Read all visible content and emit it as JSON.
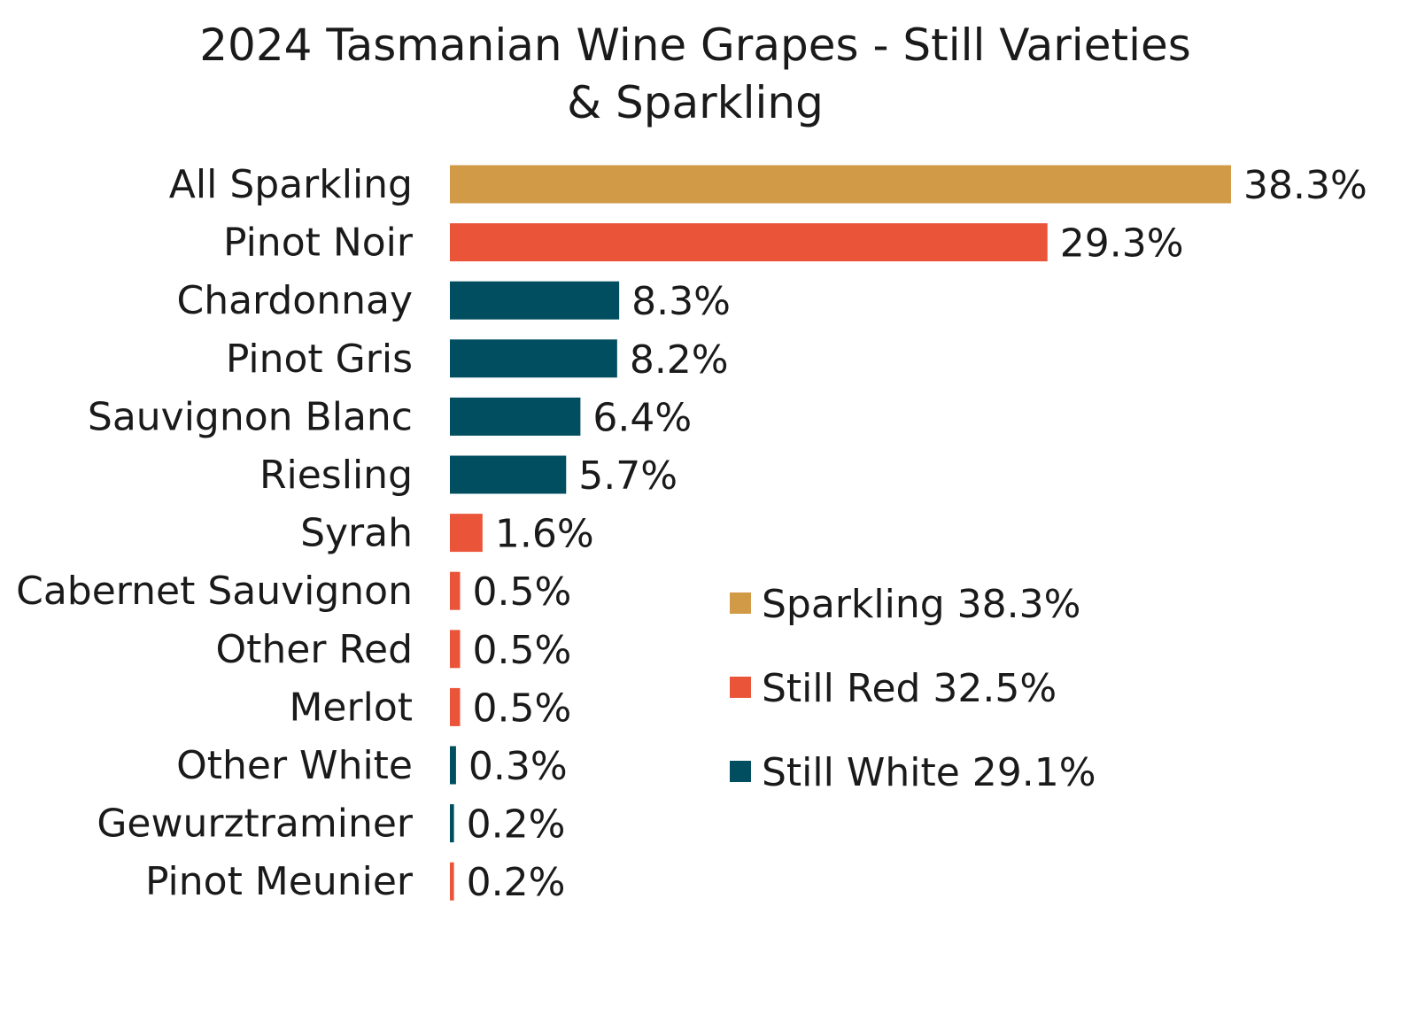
{
  "chart_data": {
    "type": "bar",
    "orientation": "horizontal",
    "title": "2024 Tasmanian Wine Grapes - Still Varieties & Sparkling",
    "title_lines": [
      "2024 Tasmanian Wine Grapes - Still Varieties",
      "& Sparkling"
    ],
    "categories": [
      "All Sparkling",
      "Pinot Noir",
      "Chardonnay",
      "Pinot Gris",
      "Sauvignon Blanc",
      "Riesling",
      "Syrah",
      "Cabernet Sauvignon",
      "Other Red",
      "Merlot",
      "Other White",
      "Gewurztraminer",
      "Pinot Meunier"
    ],
    "values": [
      38.3,
      29.3,
      8.3,
      8.2,
      6.4,
      5.7,
      1.6,
      0.5,
      0.5,
      0.5,
      0.3,
      0.2,
      0.2
    ],
    "value_labels": [
      "38.3%",
      "29.3%",
      "8.3%",
      "8.2%",
      "6.4%",
      "5.7%",
      "1.6%",
      "0.5%",
      "0.5%",
      "0.5%",
      "0.3%",
      "0.2%",
      "0.2%"
    ],
    "groups": [
      "Sparkling",
      "Still Red",
      "Still White",
      "Still White",
      "Still White",
      "Still White",
      "Still Red",
      "Still Red",
      "Still Red",
      "Still Red",
      "Still White",
      "Still White",
      "Still Red"
    ],
    "xlim": [
      0,
      38.3
    ],
    "grid": false,
    "legend_position": "center-right",
    "legend": [
      {
        "name": "Sparkling",
        "label": "Sparkling 38.3%",
        "value": 38.3,
        "color": "#D09A47"
      },
      {
        "name": "Still Red",
        "label": "Still Red 32.5%",
        "value": 32.5,
        "color": "#EA553A"
      },
      {
        "name": "Still White",
        "label": "Still White 29.1%",
        "value": 29.1,
        "color": "#004E5F"
      }
    ],
    "colors": {
      "Sparkling": "#D09A47",
      "Still Red": "#EA553A",
      "Still White": "#004E5F"
    }
  }
}
